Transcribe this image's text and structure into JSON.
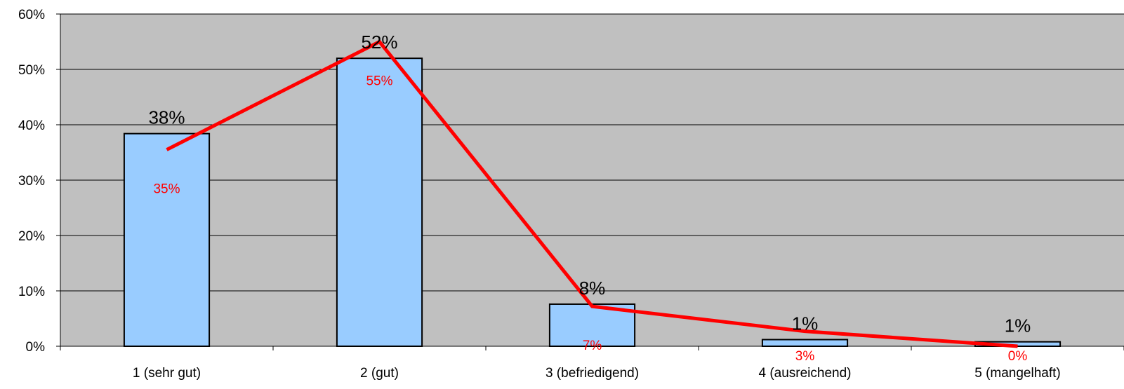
{
  "chart_data": {
    "type": "bar",
    "categories": [
      "1 (sehr gut)",
      "2  (gut)",
      "3 (befriedigend)",
      "4 (ausreichend)",
      "5 (mangelhaft)"
    ],
    "series": [
      {
        "type": "bar",
        "values": [
          38.4,
          52,
          7.6,
          1.2,
          0.8
        ],
        "labels": [
          "38%",
          "52%",
          "8%",
          "1%",
          "1%"
        ],
        "color": "#99ccff"
      },
      {
        "type": "line",
        "values": [
          35.5,
          55,
          7.2,
          2.7,
          0
        ],
        "labels": [
          "35%",
          "55%",
          "7%",
          "3%",
          "0%"
        ],
        "color": "#ff0000"
      }
    ],
    "ylim": [
      0,
      60
    ],
    "yticks": [
      "0%",
      "10%",
      "20%",
      "30%",
      "40%",
      "50%",
      "60%"
    ],
    "grid": true,
    "plot_background": "#c0c0c0"
  }
}
